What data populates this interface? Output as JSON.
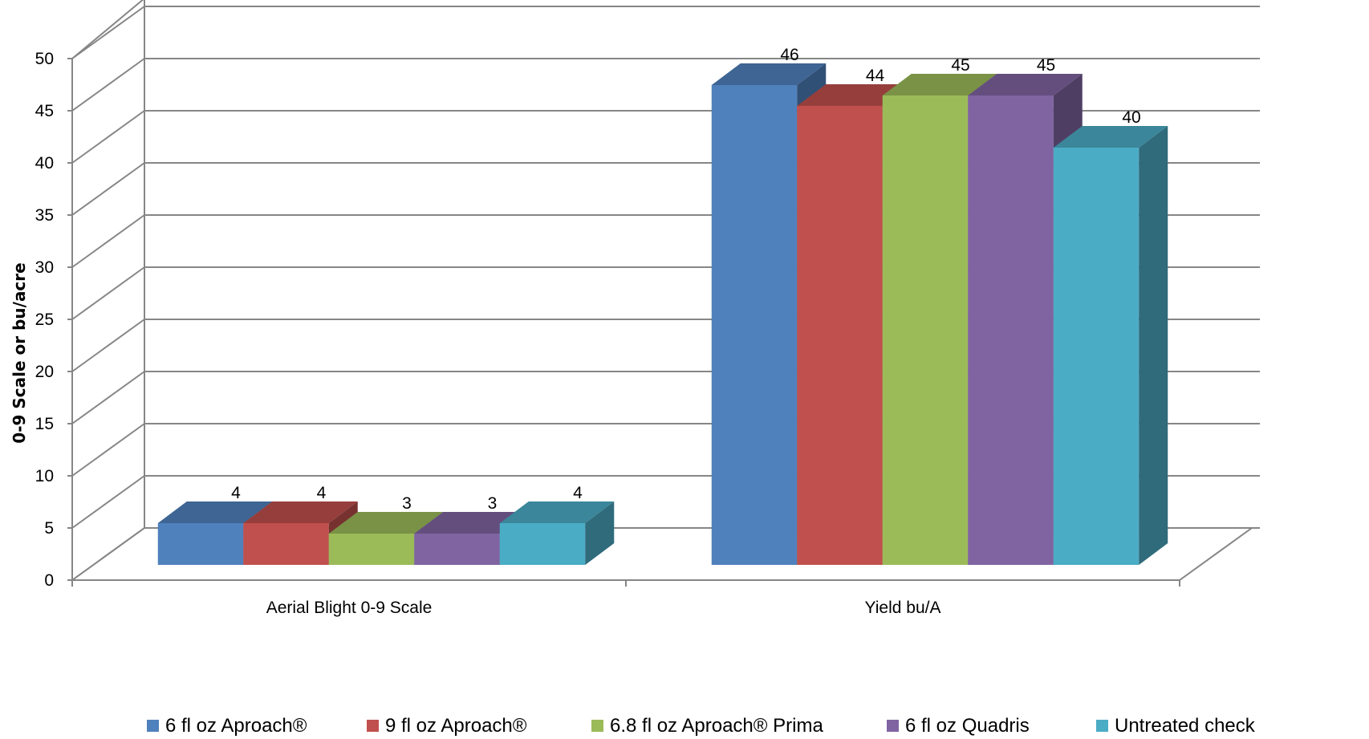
{
  "chart_data": {
    "type": "bar",
    "style": "3d-clustered",
    "categories": [
      "Aerial Blight 0-9 Scale",
      "Yield bu/A"
    ],
    "series": [
      {
        "name": "6 fl oz Aproach®",
        "values": [
          4,
          46
        ],
        "color": "#4f81bd"
      },
      {
        "name": "9 fl oz Aproach®",
        "values": [
          4,
          44
        ],
        "color": "#c0504d"
      },
      {
        "name": "6.8 fl oz Aproach® Prima",
        "values": [
          3,
          45
        ],
        "color": "#9bbb59"
      },
      {
        "name": "6 fl oz Quadris",
        "values": [
          3,
          45
        ],
        "color": "#8064a2"
      },
      {
        "name": "Untreated check",
        "values": [
          4,
          40
        ],
        "color": "#4bacc6"
      }
    ],
    "data_labels": [
      [
        "4",
        "46"
      ],
      [
        "4",
        "44"
      ],
      [
        "3",
        "45"
      ],
      [
        "3",
        "45"
      ],
      [
        "4",
        "40"
      ]
    ],
    "ylabel": "0-9 Scale or bu/acre",
    "ylim": [
      0,
      50
    ],
    "yticks": [
      0,
      5,
      10,
      15,
      20,
      25,
      30,
      35,
      40,
      45,
      50
    ],
    "grid": true,
    "legend": "bottom"
  }
}
